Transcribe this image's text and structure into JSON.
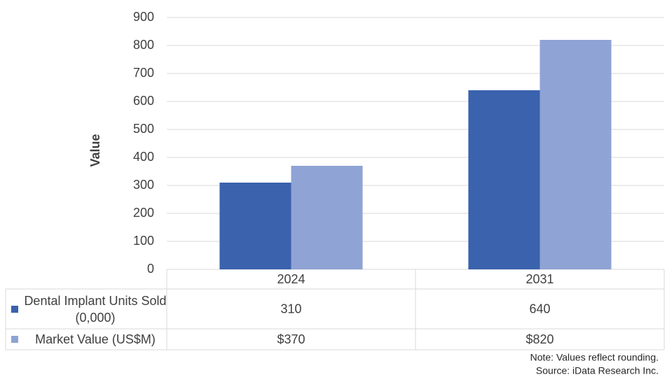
{
  "chart_data": {
    "type": "bar",
    "y_label": "Value",
    "categories": [
      "2024",
      "2031"
    ],
    "series": [
      {
        "name": "Dental Implant Units Sold (0,000)",
        "color": "#3a62ad",
        "values": [
          310,
          640
        ]
      },
      {
        "name": "Market Value (US$M)",
        "color": "#8fa3d4",
        "values": [
          370,
          820
        ],
        "value_labels": [
          "$370",
          "$820"
        ]
      }
    ],
    "ylim": [
      0,
      900
    ],
    "yticks": [
      0,
      100,
      200,
      300,
      400,
      500,
      600,
      700,
      800,
      900
    ],
    "grid": true,
    "notes": [
      "Note: Values reflect rounding.",
      "Source: iData Research Inc."
    ]
  }
}
